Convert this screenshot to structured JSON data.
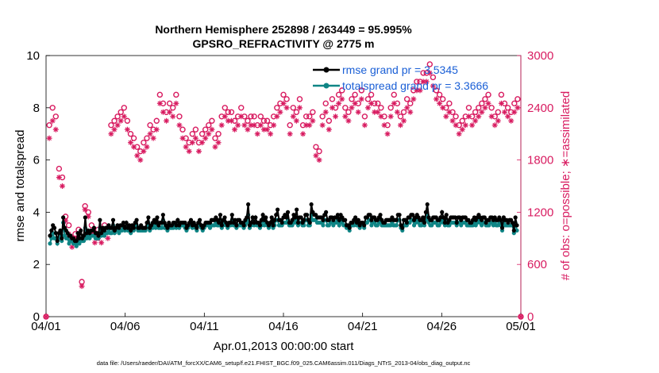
{
  "chart_data": {
    "type": "line",
    "title_line1": "Northern Hemisphere 252898 / 263449 = 95.995%",
    "title_line2": "GPSRO_REFRACTIVITY @ 2775 m",
    "xlabel": "Apr.01,2013 00:00:00 start",
    "ylabel_left": "rmse and totalspread",
    "ylabel_right": "# of obs: o=possible; ∗=assimilated",
    "footer": "data file: /Users/raeder/DAI/ATM_forcXX/CAM6_setup/f.e21.FHIST_BGC.f09_025.CAM6assim.011/Diags_NTrS_2013-04/obs_diag_output.nc",
    "x_range_days": [
      0,
      30
    ],
    "ylim_left": [
      0,
      10
    ],
    "ylim_right": [
      0,
      3000
    ],
    "x_ticks": [
      {
        "day": 0,
        "label": "04/01"
      },
      {
        "day": 5,
        "label": "04/06"
      },
      {
        "day": 10,
        "label": "04/11"
      },
      {
        "day": 15,
        "label": "04/16"
      },
      {
        "day": 20,
        "label": "04/21"
      },
      {
        "day": 25,
        "label": "04/26"
      },
      {
        "day": 30,
        "label": "05/01"
      }
    ],
    "y_ticks_left": [
      0,
      2,
      4,
      6,
      8,
      10
    ],
    "y_ticks_right": [
      0,
      600,
      1200,
      1800,
      2400,
      3000
    ],
    "legend": [
      {
        "label": "rmse grand pr = 3.5345",
        "color": "#000000"
      },
      {
        "label": "totalspread grand pr = 3.3666",
        "color": "#008080"
      }
    ],
    "colors": {
      "rmse": "#000000",
      "spread": "#0f8585",
      "obs": "#d81b60",
      "legend_text": "#1a5fd6",
      "right_axis": "#d81b60"
    },
    "time_step_days": 0.25,
    "rmse": [
      3.1,
      3.3,
      3.5,
      3.4,
      3.2,
      2.9,
      3.2,
      3.3,
      3.0,
      3.8,
      3.4,
      3.3,
      3.2,
      3.1,
      3.1,
      3.0,
      3.0,
      2.9,
      2.9,
      3.2,
      3.0,
      3.3,
      3.0,
      3.1,
      3.8,
      3.2,
      3.3,
      3.2,
      3.3,
      3.3,
      3.4,
      3.2,
      3.2,
      3.1,
      3.7,
      3.2,
      3.4,
      3.3,
      3.4,
      3.4,
      3.5,
      3.4,
      3.4,
      3.7,
      3.3,
      3.4,
      3.5,
      3.4,
      3.5,
      3.5,
      3.6,
      3.4,
      3.6,
      3.4,
      3.5,
      3.3,
      3.5,
      3.4,
      3.6,
      3.7,
      3.4,
      3.4,
      3.5,
      3.4,
      3.4,
      3.4,
      3.6,
      3.8,
      3.4,
      3.5,
      3.6,
      3.7,
      3.6,
      3.8,
      3.5,
      3.6,
      3.6,
      3.9,
      3.6,
      3.5,
      3.4,
      3.6,
      3.5,
      3.5,
      3.6,
      3.6,
      3.5,
      3.7,
      3.5,
      3.6,
      3.6,
      3.6,
      3.6,
      3.4,
      3.5,
      3.6,
      3.7,
      3.5,
      3.6,
      3.5,
      3.4,
      3.6,
      3.7,
      3.5,
      3.4,
      3.5,
      3.6,
      3.6,
      3.6,
      3.6,
      3.7,
      3.7,
      3.7,
      3.8,
      3.7,
      3.6,
      3.9,
      3.5,
      3.7,
      3.8,
      3.6,
      3.5,
      3.6,
      3.6,
      3.9,
      3.6,
      3.7,
      3.5,
      3.7,
      3.7,
      3.6,
      3.6,
      3.5,
      3.7,
      3.8,
      4.3,
      3.5,
      3.6,
      3.8,
      3.6,
      3.8,
      3.6,
      3.6,
      3.5,
      3.7,
      3.9,
      3.7,
      3.8,
      3.6,
      3.5,
      3.6,
      3.8,
      3.5,
      3.7,
      3.9,
      4.1,
      3.7,
      3.7,
      3.6,
      3.8,
      3.9,
      3.8,
      4.0,
      3.6,
      3.6,
      3.7,
      3.9,
      3.8,
      4.1,
      3.6,
      3.8,
      3.8,
      3.6,
      3.7,
      3.9,
      3.9,
      3.7,
      3.6,
      4.3,
      4.0,
      3.9,
      3.9,
      3.8,
      3.8,
      3.8,
      3.8,
      3.7,
      3.9,
      4.0,
      3.7,
      3.7,
      3.8,
      3.8,
      3.7,
      3.8,
      3.8,
      3.9,
      3.7,
      3.9,
      3.8,
      3.7,
      3.7,
      3.5,
      3.5,
      3.4,
      3.6,
      3.6,
      3.7,
      3.8,
      3.6,
      3.7,
      3.5,
      3.6,
      3.6,
      3.5,
      3.8,
      3.8,
      3.9,
      3.9,
      3.7,
      3.8,
      3.8,
      3.7,
      3.7,
      3.8,
      3.9,
      3.7,
      3.6,
      3.6,
      3.7,
      3.7,
      3.7,
      3.7,
      3.8,
      3.7,
      3.7,
      3.7,
      3.9,
      3.9,
      3.5,
      3.4,
      3.7,
      3.7,
      3.6,
      3.8,
      3.8,
      3.9,
      3.9,
      3.7,
      3.8,
      3.9,
      3.8,
      3.7,
      3.7,
      3.8,
      3.6,
      4.0,
      4.3,
      3.8,
      3.7,
      3.7,
      3.8,
      3.8,
      3.8,
      3.7,
      3.7,
      3.8,
      4.0,
      3.8,
      3.6,
      3.9,
      3.6,
      3.7,
      3.8,
      3.8,
      3.8,
      3.8,
      3.6,
      3.8,
      3.8,
      3.7,
      3.8,
      3.8,
      3.8,
      3.7,
      3.7,
      3.6,
      3.6,
      3.7,
      3.8,
      3.7,
      3.8,
      3.9,
      3.8,
      3.7,
      3.8,
      3.8,
      3.6,
      3.7,
      3.7,
      3.8,
      3.8,
      3.7,
      3.8,
      3.7,
      3.7,
      3.8,
      3.7,
      3.4,
      3.8,
      3.7,
      3.7,
      3.6,
      3.7,
      3.7,
      3.6,
      3.3,
      3.8,
      3.5
    ],
    "spread": [
      2.8,
      3.0,
      3.2,
      3.0,
      3.0,
      2.8,
      3.0,
      3.1,
      2.9,
      3.6,
      3.1,
      3.0,
      3.0,
      2.8,
      2.9,
      2.9,
      2.8,
      2.8,
      2.7,
      2.9,
      2.8,
      3.0,
      2.9,
      2.9,
      3.4,
      3.0,
      3.1,
      3.0,
      3.1,
      3.1,
      3.1,
      3.0,
      3.0,
      3.0,
      3.4,
      3.1,
      3.2,
      3.1,
      3.2,
      3.2,
      3.3,
      3.2,
      3.2,
      3.5,
      3.2,
      3.3,
      3.3,
      3.2,
      3.3,
      3.3,
      3.4,
      3.3,
      3.4,
      3.3,
      3.3,
      3.2,
      3.4,
      3.3,
      3.4,
      3.5,
      3.3,
      3.3,
      3.3,
      3.3,
      3.3,
      3.3,
      3.4,
      3.6,
      3.3,
      3.4,
      3.4,
      3.5,
      3.4,
      3.6,
      3.4,
      3.4,
      3.4,
      3.7,
      3.4,
      3.4,
      3.3,
      3.5,
      3.4,
      3.4,
      3.4,
      3.5,
      3.4,
      3.5,
      3.4,
      3.5,
      3.5,
      3.5,
      3.4,
      3.3,
      3.4,
      3.5,
      3.5,
      3.4,
      3.5,
      3.4,
      3.3,
      3.5,
      3.5,
      3.4,
      3.3,
      3.4,
      3.5,
      3.5,
      3.5,
      3.4,
      3.5,
      3.5,
      3.5,
      3.6,
      3.5,
      3.5,
      3.7,
      3.4,
      3.5,
      3.6,
      3.5,
      3.4,
      3.5,
      3.5,
      3.7,
      3.5,
      3.5,
      3.4,
      3.5,
      3.5,
      3.5,
      3.5,
      3.4,
      3.5,
      3.6,
      3.9,
      3.4,
      3.5,
      3.6,
      3.5,
      3.6,
      3.5,
      3.5,
      3.4,
      3.5,
      3.7,
      3.5,
      3.6,
      3.5,
      3.4,
      3.5,
      3.6,
      3.4,
      3.5,
      3.7,
      3.7,
      3.5,
      3.5,
      3.5,
      3.6,
      3.6,
      3.6,
      3.7,
      3.5,
      3.5,
      3.5,
      3.7,
      3.6,
      3.8,
      3.5,
      3.6,
      3.6,
      3.5,
      3.5,
      3.7,
      3.7,
      3.5,
      3.5,
      3.9,
      3.7,
      3.7,
      3.7,
      3.6,
      3.6,
      3.6,
      3.6,
      3.5,
      3.7,
      3.7,
      3.5,
      3.5,
      3.6,
      3.6,
      3.5,
      3.6,
      3.6,
      3.7,
      3.5,
      3.7,
      3.6,
      3.5,
      3.5,
      3.4,
      3.4,
      3.3,
      3.5,
      3.5,
      3.5,
      3.6,
      3.5,
      3.5,
      3.4,
      3.5,
      3.5,
      3.4,
      3.6,
      3.6,
      3.7,
      3.7,
      3.5,
      3.6,
      3.6,
      3.5,
      3.5,
      3.6,
      3.7,
      3.5,
      3.5,
      3.5,
      3.5,
      3.5,
      3.5,
      3.5,
      3.6,
      3.5,
      3.5,
      3.5,
      3.7,
      3.7,
      3.4,
      3.3,
      3.5,
      3.5,
      3.5,
      3.6,
      3.6,
      3.7,
      3.7,
      3.5,
      3.6,
      3.7,
      3.6,
      3.5,
      3.5,
      3.6,
      3.5,
      3.7,
      3.9,
      3.6,
      3.5,
      3.5,
      3.6,
      3.6,
      3.6,
      3.5,
      3.5,
      3.6,
      3.7,
      3.6,
      3.5,
      3.7,
      3.5,
      3.5,
      3.6,
      3.6,
      3.6,
      3.6,
      3.5,
      3.6,
      3.6,
      3.5,
      3.6,
      3.6,
      3.6,
      3.5,
      3.5,
      3.5,
      3.5,
      3.5,
      3.6,
      3.5,
      3.6,
      3.7,
      3.6,
      3.5,
      3.6,
      3.6,
      3.5,
      3.5,
      3.5,
      3.6,
      3.6,
      3.5,
      3.6,
      3.5,
      3.5,
      3.6,
      3.5,
      3.3,
      3.6,
      3.5,
      3.5,
      3.5,
      3.5,
      3.5,
      3.5,
      3.2,
      3.6,
      3.3
    ],
    "obs_possible": [
      0,
      2200,
      2400,
      2300,
      1700,
      1600,
      1150,
      1050,
      900,
      950,
      1000,
      400,
      1270,
      1200,
      1050,
      950,
      1000,
      950,
      1050,
      1000,
      2200,
      2250,
      2300,
      2350,
      2400,
      2250,
      2100,
      2050,
      1950,
      1900,
      2000,
      2050,
      2200,
      2150,
      2250,
      2550,
      2450,
      2350,
      2450,
      2400,
      2550,
      2300,
      2150,
      2050,
      2000,
      2100,
      2150,
      2000,
      2100,
      2150,
      2200,
      2250,
      2050,
      2100,
      2300,
      2400,
      2350,
      2350,
      2250,
      2300,
      2400,
      2300,
      2250,
      2300,
      2300,
      2200,
      2300,
      2250,
      2250,
      2200,
      2300,
      2400,
      2450,
      2550,
      2500,
      2200,
      2400,
      2350,
      2500,
      2200,
      2300,
      2300,
      2350,
      1950,
      1900,
      2300,
      2450,
      2250,
      2500,
      2400,
      2550,
      2600,
      2400,
      2350,
      2500,
      2550,
      2450,
      2600,
      2300,
      2500,
      2550,
      2450,
      2450,
      2400,
      2300,
      2200,
      2400,
      2550,
      2450,
      2300,
      2350,
      2500,
      2450,
      2600,
      2700,
      2700,
      2800,
      2800,
      2900,
      2750,
      2600,
      2550,
      2500,
      2400,
      2450,
      2350,
      2300,
      2200,
      2250,
      2300,
      2400,
      2300,
      2350,
      2400,
      2450,
      2500,
      2550,
      2400,
      2300,
      2350,
      2550,
      2450,
      2400,
      2350,
      2450,
      2500,
      0
    ],
    "obs_assimilated": [
      0,
      2050,
      2250,
      2150,
      1600,
      1500,
      1100,
      950,
      800,
      900,
      950,
      350,
      1230,
      1150,
      950,
      850,
      900,
      850,
      950,
      900,
      2100,
      2150,
      2200,
      2250,
      2300,
      2150,
      2000,
      1950,
      1850,
      1800,
      1900,
      1950,
      2100,
      2050,
      2150,
      2450,
      2350,
      2250,
      2350,
      2300,
      2450,
      2200,
      2050,
      1950,
      1900,
      2000,
      2050,
      1900,
      2000,
      2050,
      2100,
      2150,
      1950,
      2000,
      2200,
      2300,
      2250,
      2250,
      2150,
      2200,
      2300,
      2200,
      2150,
      2200,
      2200,
      2100,
      2200,
      2150,
      2150,
      2100,
      2200,
      2300,
      2350,
      2450,
      2400,
      2100,
      2300,
      2250,
      2400,
      2100,
      2200,
      2200,
      2250,
      1850,
      1800,
      2200,
      2350,
      2150,
      2400,
      2300,
      2450,
      2500,
      2300,
      2250,
      2400,
      2450,
      2350,
      2500,
      2200,
      2400,
      2450,
      2350,
      2350,
      2300,
      2200,
      2100,
      2300,
      2450,
      2350,
      2200,
      2250,
      2400,
      2350,
      2500,
      2600,
      2600,
      2700,
      2700,
      2800,
      2650,
      2500,
      2450,
      2400,
      2300,
      2350,
      2250,
      2200,
      2100,
      2150,
      2200,
      2300,
      2200,
      2250,
      2300,
      2350,
      2400,
      2450,
      2300,
      2200,
      2250,
      2450,
      2350,
      2300,
      2250,
      2350,
      2400,
      0
    ]
  }
}
